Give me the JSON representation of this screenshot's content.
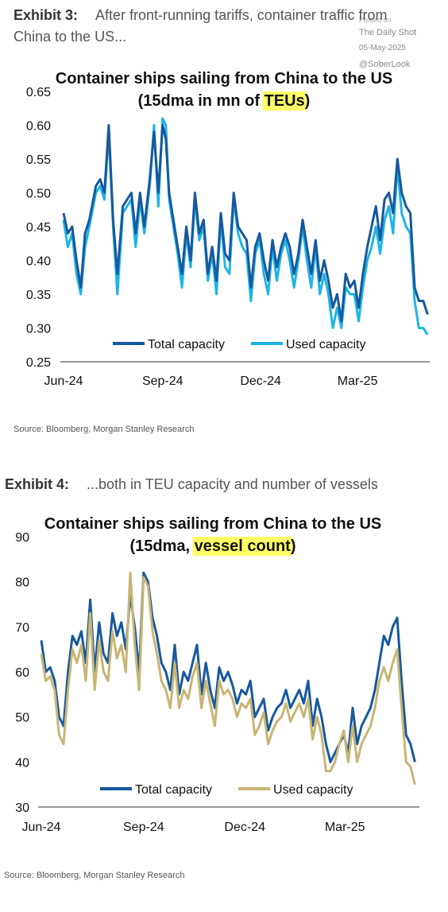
{
  "watermark": {
    "line1": "Posted on",
    "line2": "The Daily Shot",
    "line3": "05-May-2025",
    "line4": "@SoberLook"
  },
  "exhibits": [
    {
      "label": "Exhibit 3:",
      "headline": "After front-running tariffs, container traffic from China to the US...",
      "source": "Source: Bloomberg, Morgan Stanley Research"
    },
    {
      "label": "Exhibit 4:",
      "headline": "...both in TEU capacity and number of vessels",
      "source": "Source: Bloomberg, Morgan Stanley Research"
    }
  ],
  "chart_data": [
    {
      "type": "line",
      "title": "Container ships sailing from China to the US",
      "subtitle_prefix": "(15dma in mn of ",
      "subtitle_highlight": "TEUs",
      "subtitle_suffix": ")",
      "highlight_color": "#ffff66",
      "ylim": [
        0.25,
        0.65
      ],
      "yticks": [
        "0.65",
        "0.60",
        "0.55",
        "0.50",
        "0.45",
        "0.40",
        "0.35",
        "0.30",
        "0.25"
      ],
      "ytick_values": [
        0.65,
        0.6,
        0.55,
        0.5,
        0.45,
        0.4,
        0.35,
        0.3,
        0.25
      ],
      "xlim": [
        0,
        340
      ],
      "xticks": [
        "Jun-24",
        "Sep-24",
        "Dec-24",
        "Mar-25"
      ],
      "xtick_positions": [
        0,
        92,
        183,
        273
      ],
      "legend_position": "bottom-center",
      "grid": false,
      "x_unit": "days since 1-Jun-2024",
      "series": [
        {
          "name": "Total capacity",
          "color": "#17589e",
          "x": [
            0,
            4,
            8,
            12,
            16,
            20,
            24,
            30,
            34,
            38,
            42,
            46,
            50,
            55,
            59,
            63,
            67,
            71,
            75,
            80,
            84,
            88,
            92,
            95,
            98,
            102,
            106,
            110,
            114,
            118,
            122,
            126,
            130,
            134,
            138,
            142,
            146,
            150,
            154,
            158,
            162,
            166,
            170,
            174,
            178,
            182,
            186,
            190,
            194,
            198,
            202,
            206,
            210,
            214,
            218,
            222,
            226,
            230,
            234,
            238,
            242,
            246,
            250,
            254,
            258,
            262,
            266,
            270,
            274,
            278,
            282,
            286,
            290,
            294,
            298,
            302,
            306,
            310,
            314,
            318,
            322,
            326,
            330,
            334,
            338
          ],
          "values": [
            0.47,
            0.44,
            0.45,
            0.4,
            0.36,
            0.44,
            0.46,
            0.51,
            0.52,
            0.5,
            0.6,
            0.46,
            0.38,
            0.48,
            0.49,
            0.5,
            0.44,
            0.5,
            0.45,
            0.52,
            0.59,
            0.5,
            0.6,
            0.58,
            0.5,
            0.46,
            0.42,
            0.38,
            0.45,
            0.4,
            0.5,
            0.44,
            0.46,
            0.38,
            0.42,
            0.37,
            0.47,
            0.41,
            0.4,
            0.5,
            0.45,
            0.44,
            0.43,
            0.36,
            0.42,
            0.44,
            0.4,
            0.37,
            0.43,
            0.39,
            0.42,
            0.44,
            0.42,
            0.38,
            0.41,
            0.46,
            0.42,
            0.38,
            0.43,
            0.37,
            0.4,
            0.37,
            0.33,
            0.35,
            0.31,
            0.38,
            0.36,
            0.37,
            0.33,
            0.38,
            0.42,
            0.45,
            0.48,
            0.43,
            0.49,
            0.5,
            0.47,
            0.55,
            0.5,
            0.48,
            0.47,
            0.36,
            0.34,
            0.34,
            0.32
          ]
        },
        {
          "name": "Used capacity",
          "color": "#1eb4e6",
          "x": [
            0,
            4,
            8,
            12,
            16,
            20,
            24,
            30,
            34,
            38,
            42,
            46,
            50,
            55,
            59,
            63,
            67,
            71,
            75,
            80,
            84,
            88,
            92,
            95,
            98,
            102,
            106,
            110,
            114,
            118,
            122,
            126,
            130,
            134,
            138,
            142,
            146,
            150,
            154,
            158,
            162,
            166,
            170,
            174,
            178,
            182,
            186,
            190,
            194,
            198,
            202,
            206,
            210,
            214,
            218,
            222,
            226,
            230,
            234,
            238,
            242,
            246,
            250,
            254,
            258,
            262,
            266,
            270,
            274,
            278,
            282,
            286,
            290,
            294,
            298,
            302,
            306,
            310,
            314,
            318,
            322,
            326,
            330,
            334,
            338
          ],
          "values": [
            0.46,
            0.42,
            0.44,
            0.38,
            0.35,
            0.42,
            0.45,
            0.5,
            0.51,
            0.49,
            0.59,
            0.45,
            0.35,
            0.47,
            0.48,
            0.49,
            0.42,
            0.49,
            0.44,
            0.51,
            0.6,
            0.48,
            0.61,
            0.6,
            0.49,
            0.45,
            0.41,
            0.36,
            0.44,
            0.39,
            0.49,
            0.43,
            0.45,
            0.37,
            0.41,
            0.35,
            0.46,
            0.39,
            0.38,
            0.49,
            0.44,
            0.42,
            0.41,
            0.34,
            0.41,
            0.43,
            0.38,
            0.35,
            0.42,
            0.37,
            0.41,
            0.43,
            0.4,
            0.36,
            0.4,
            0.45,
            0.4,
            0.36,
            0.42,
            0.35,
            0.38,
            0.35,
            0.3,
            0.33,
            0.3,
            0.36,
            0.35,
            0.35,
            0.31,
            0.36,
            0.4,
            0.42,
            0.45,
            0.41,
            0.46,
            0.48,
            0.44,
            0.54,
            0.47,
            0.45,
            0.44,
            0.34,
            0.3,
            0.3,
            0.29
          ]
        }
      ]
    },
    {
      "type": "line",
      "title": "Container ships sailing from China to the US",
      "subtitle_prefix": "(15dma, ",
      "subtitle_highlight": "vessel count",
      "subtitle_suffix": ")",
      "highlight_color": "#ffff66",
      "ylim": [
        30,
        90
      ],
      "yticks": [
        "90",
        "80",
        "70",
        "60",
        "50",
        "40",
        "30"
      ],
      "ytick_values": [
        90,
        80,
        70,
        60,
        50,
        40,
        30
      ],
      "xlim": [
        0,
        340
      ],
      "xticks": [
        "Jun-24",
        "Sep-24",
        "Dec-24",
        "Mar-25"
      ],
      "xtick_positions": [
        0,
        92,
        183,
        273
      ],
      "legend_position": "bottom-center",
      "grid": false,
      "x_unit": "days since 1-Jun-2024",
      "series": [
        {
          "name": "Total capacity",
          "color": "#17589e",
          "x": [
            0,
            4,
            8,
            12,
            16,
            20,
            24,
            28,
            32,
            36,
            40,
            44,
            48,
            52,
            56,
            60,
            64,
            68,
            72,
            76,
            80,
            84,
            88,
            92,
            96,
            100,
            104,
            108,
            112,
            116,
            120,
            124,
            128,
            132,
            136,
            140,
            144,
            148,
            152,
            156,
            160,
            164,
            168,
            172,
            176,
            180,
            184,
            188,
            192,
            196,
            200,
            204,
            208,
            212,
            216,
            220,
            224,
            228,
            232,
            236,
            240,
            244,
            248,
            252,
            256,
            260,
            264,
            268,
            272,
            276,
            280,
            284,
            288,
            292,
            296,
            300,
            304,
            308,
            312,
            316,
            320,
            324,
            328,
            332,
            336
          ],
          "values": [
            67,
            60,
            61,
            58,
            50,
            48,
            60,
            68,
            66,
            69,
            62,
            76,
            60,
            71,
            64,
            62,
            73,
            68,
            71,
            65,
            77,
            70,
            60,
            82,
            80,
            72,
            68,
            62,
            60,
            56,
            66,
            55,
            60,
            58,
            62,
            66,
            55,
            62,
            56,
            52,
            61,
            58,
            60,
            57,
            53,
            56,
            55,
            58,
            50,
            52,
            54,
            47,
            50,
            52,
            53,
            56,
            52,
            54,
            56,
            53,
            58,
            48,
            54,
            50,
            44,
            40,
            42,
            44,
            46,
            42,
            52,
            44,
            48,
            50,
            52,
            56,
            62,
            68,
            66,
            70,
            72,
            58,
            46,
            44,
            40
          ]
        },
        {
          "name": "Used capacity",
          "color": "#c8b574",
          "x": [
            0,
            4,
            8,
            12,
            16,
            20,
            24,
            28,
            32,
            36,
            40,
            44,
            48,
            52,
            56,
            60,
            64,
            68,
            72,
            76,
            80,
            84,
            88,
            92,
            96,
            100,
            104,
            108,
            112,
            116,
            120,
            124,
            128,
            132,
            136,
            140,
            144,
            148,
            152,
            156,
            160,
            164,
            168,
            172,
            176,
            180,
            184,
            188,
            192,
            196,
            200,
            204,
            208,
            212,
            216,
            220,
            224,
            228,
            232,
            236,
            240,
            244,
            248,
            252,
            256,
            260,
            264,
            268,
            272,
            276,
            280,
            284,
            288,
            292,
            296,
            300,
            304,
            308,
            312,
            316,
            320,
            324,
            328,
            332,
            336
          ],
          "values": [
            64,
            58,
            59,
            56,
            46,
            44,
            56,
            65,
            62,
            66,
            58,
            73,
            56,
            67,
            60,
            58,
            69,
            63,
            66,
            60,
            82,
            66,
            56,
            81,
            79,
            69,
            64,
            58,
            56,
            52,
            62,
            52,
            56,
            54,
            59,
            62,
            52,
            58,
            53,
            48,
            58,
            55,
            56,
            54,
            50,
            53,
            52,
            54,
            46,
            48,
            51,
            44,
            47,
            49,
            50,
            53,
            49,
            51,
            53,
            50,
            54,
            45,
            50,
            46,
            38,
            38,
            40,
            44,
            47,
            40,
            48,
            40,
            44,
            46,
            48,
            52,
            58,
            61,
            58,
            62,
            65,
            52,
            40,
            39,
            35
          ]
        }
      ]
    }
  ]
}
